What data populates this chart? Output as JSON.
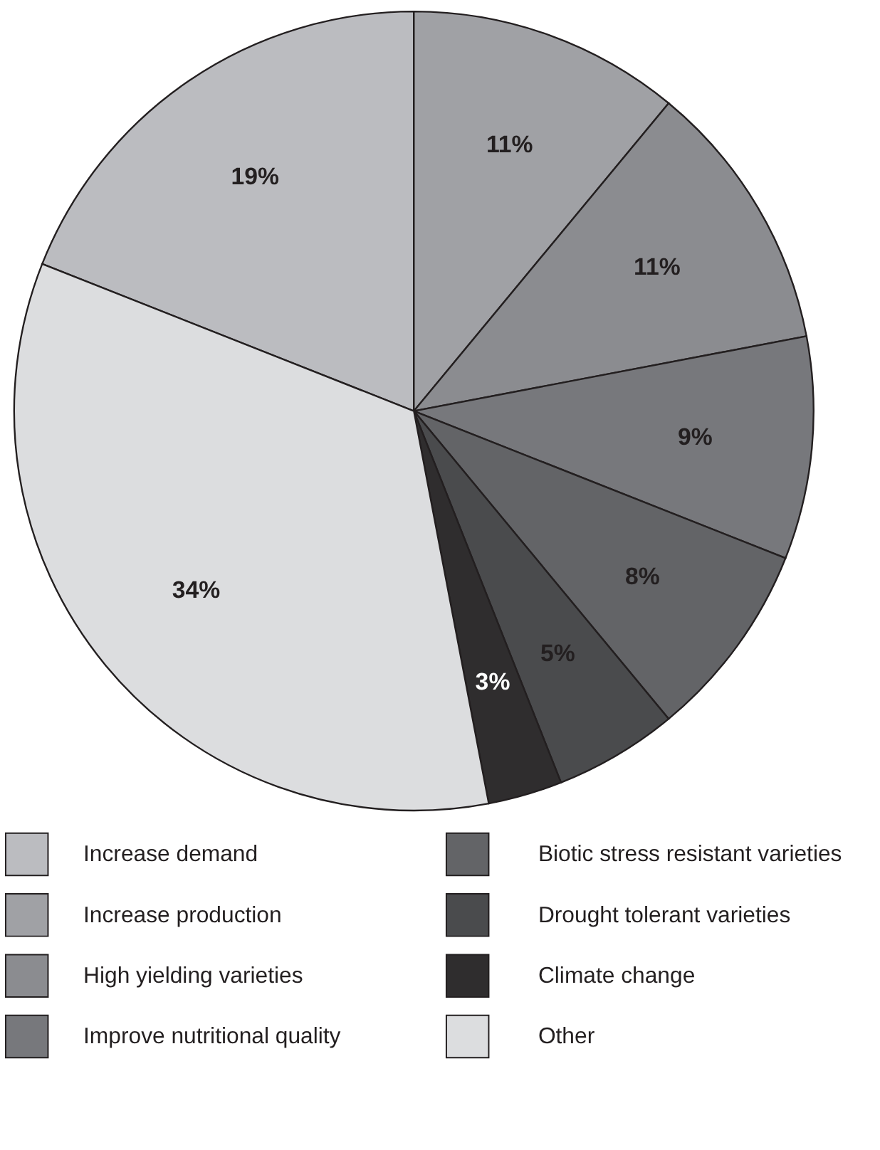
{
  "chart_data": {
    "type": "pie",
    "categories": [
      "Increase demand",
      "Increase production",
      "High yielding varieties",
      "Improve nutritional quality",
      "Biotic stress resistant varieties",
      "Drought tolerant varieties",
      "Climate change",
      "Other"
    ],
    "values": [
      19,
      11,
      11,
      9,
      8,
      5,
      3,
      34
    ],
    "colors": [
      "#bbbcc0",
      "#a0a1a5",
      "#8b8c90",
      "#77787c",
      "#636467",
      "#4a4b4d",
      "#2f2d2e",
      "#dcdddf"
    ],
    "value_labels": [
      "19%",
      "11%",
      "11%",
      "9%",
      "8%",
      "5%",
      "3%",
      "34%"
    ],
    "legend": "bottom"
  }
}
